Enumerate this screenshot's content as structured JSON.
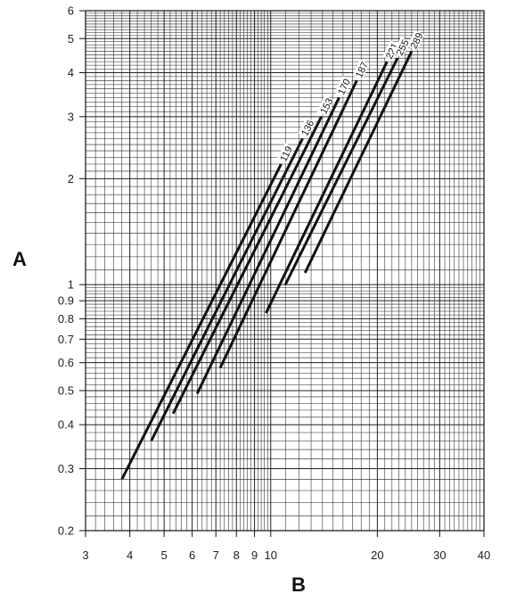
{
  "chart_data": {
    "type": "line",
    "xlabel": "B",
    "ylabel": "A",
    "x_scale": "log",
    "y_scale": "log",
    "xlim": [
      3,
      40
    ],
    "ylim": [
      0.2,
      6
    ],
    "x_ticks": [
      3,
      4,
      5,
      6,
      7,
      8,
      9,
      10,
      20,
      30,
      40
    ],
    "x_tick_labels": [
      "3",
      "4",
      "5",
      "6",
      "7",
      "8",
      "9",
      "10",
      "20",
      "30",
      "40"
    ],
    "y_ticks": [
      0.2,
      0.3,
      0.4,
      0.5,
      0.6,
      0.7,
      0.8,
      0.9,
      1,
      2,
      3,
      4,
      5,
      6
    ],
    "y_tick_labels": [
      "0.2",
      "0.3",
      "0.4",
      "0.5",
      "0.6",
      "0.7",
      "0.8",
      "0.9",
      "1",
      "2",
      "3",
      "4",
      "5",
      "6"
    ],
    "grid": true,
    "series": [
      {
        "name": "119",
        "x": [
          3.8,
          10.7
        ],
        "y": [
          0.28,
          2.2
        ]
      },
      {
        "name": "136",
        "x": [
          4.6,
          12.3
        ],
        "y": [
          0.36,
          2.6
        ]
      },
      {
        "name": "153",
        "x": [
          5.3,
          13.9
        ],
        "y": [
          0.43,
          3.0
        ]
      },
      {
        "name": "170",
        "x": [
          6.2,
          15.6
        ],
        "y": [
          0.49,
          3.4
        ]
      },
      {
        "name": "187",
        "x": [
          7.2,
          17.5
        ],
        "y": [
          0.58,
          3.8
        ]
      },
      {
        "name": "221",
        "x": [
          9.7,
          21.3
        ],
        "y": [
          0.83,
          4.3
        ]
      },
      {
        "name": "255",
        "x": [
          11.0,
          22.8
        ],
        "y": [
          1.0,
          4.4
        ]
      },
      {
        "name": "289",
        "x": [
          12.5,
          25.0
        ],
        "y": [
          1.08,
          4.6
        ]
      }
    ]
  }
}
